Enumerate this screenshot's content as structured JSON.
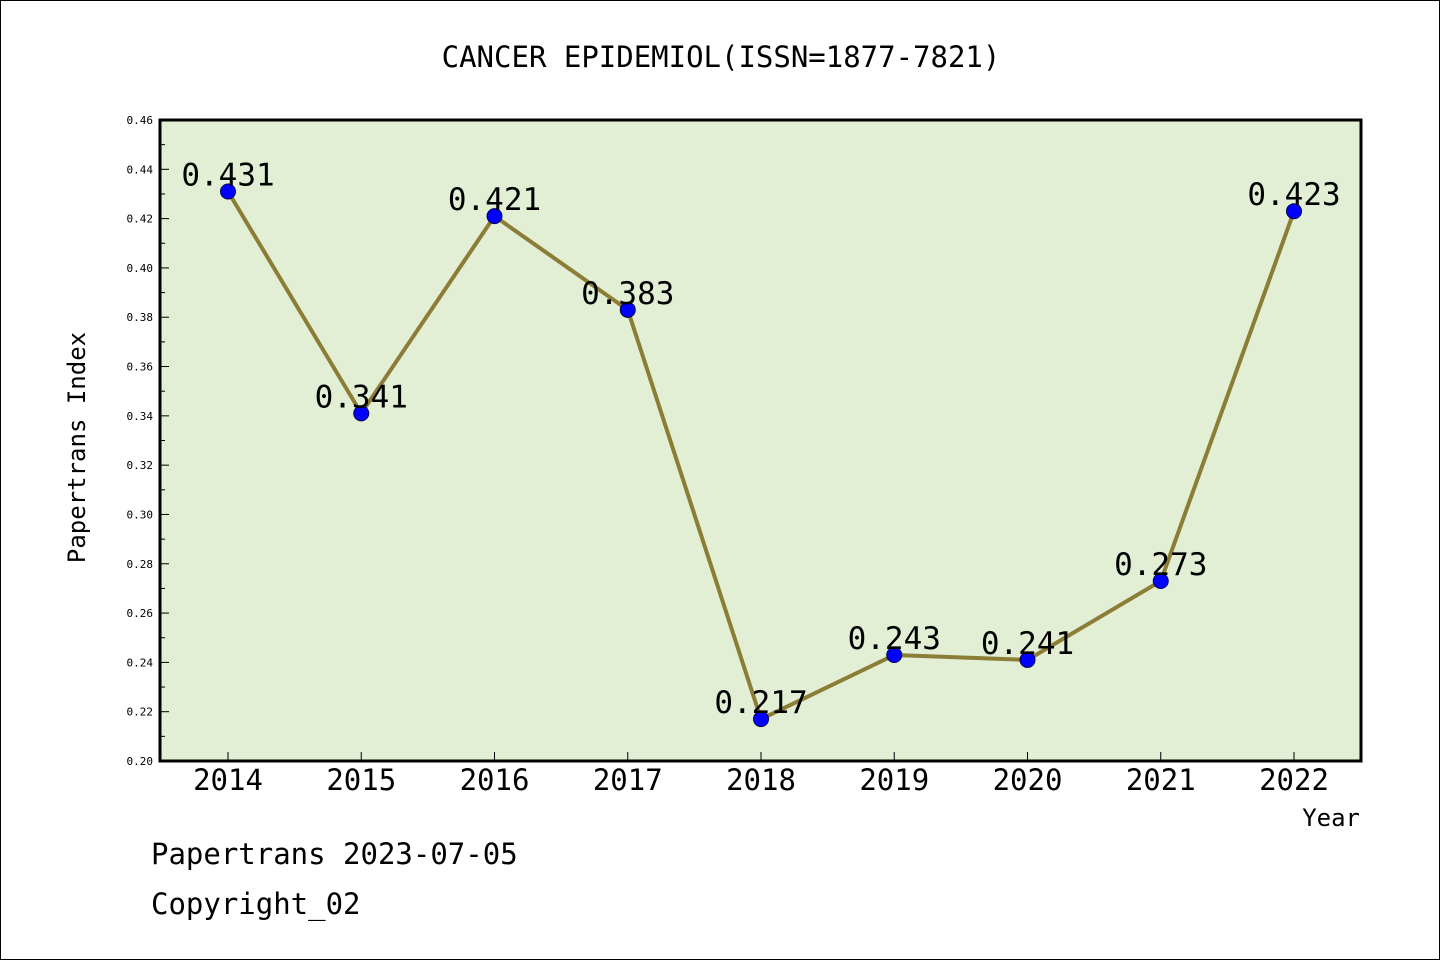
{
  "chart_data": {
    "type": "line",
    "title": "CANCER EPIDEMIOL(ISSN=1877-7821)",
    "xlabel": "Year",
    "ylabel": "Papertrans Index",
    "categories": [
      "2014",
      "2015",
      "2016",
      "2017",
      "2018",
      "2019",
      "2020",
      "2021",
      "2022"
    ],
    "values": [
      0.431,
      0.341,
      0.421,
      0.383,
      0.217,
      0.243,
      0.241,
      0.273,
      0.423
    ],
    "data_labels": [
      "0.431",
      "0.341",
      "0.421",
      "0.383",
      "0.217",
      "0.243",
      "0.241",
      "0.273",
      "0.423"
    ],
    "ylim": [
      0.2,
      0.46
    ],
    "yticks": [
      "0.20",
      "0.22",
      "0.24",
      "0.26",
      "0.28",
      "0.30",
      "0.32",
      "0.34",
      "0.36",
      "0.38",
      "0.40",
      "0.42",
      "0.44",
      "0.46"
    ],
    "grid": false,
    "colors": {
      "plot_background": "#e2efd5",
      "line": "#8b7d35",
      "marker": "#0000ff"
    }
  },
  "footer": {
    "line1": "Papertrans 2023-07-05",
    "line2": "Copyright_02"
  }
}
